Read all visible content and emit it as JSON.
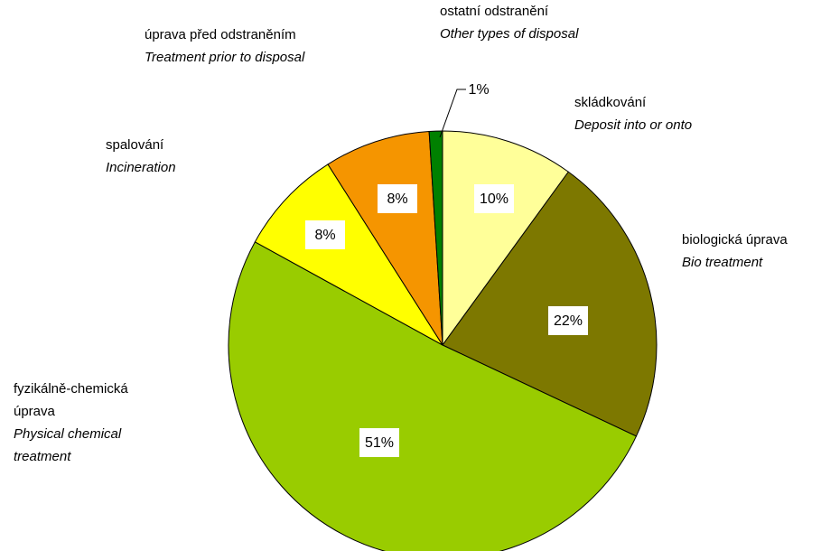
{
  "chart_data": {
    "type": "pie",
    "categories": [
      "skládkování",
      "biologická úprava",
      "fyzikálně-chemická úprava",
      "spalování",
      "úprava před odstraněním",
      "ostatní odstranění"
    ],
    "categories_en": [
      "Deposit into or onto",
      "Bio treatment",
      "Physical chemical treatment",
      "Incineration",
      "Treatment prior to disposal",
      "Other types of disposal"
    ],
    "values": [
      10,
      22,
      51,
      8,
      8,
      1
    ],
    "value_labels": [
      "10%",
      "22%",
      "51%",
      "8%",
      "8%",
      "1%"
    ],
    "colors": [
      "#ffff99",
      "#7d7800",
      "#99cc00",
      "#ffff00",
      "#f59500",
      "#008000"
    ]
  }
}
